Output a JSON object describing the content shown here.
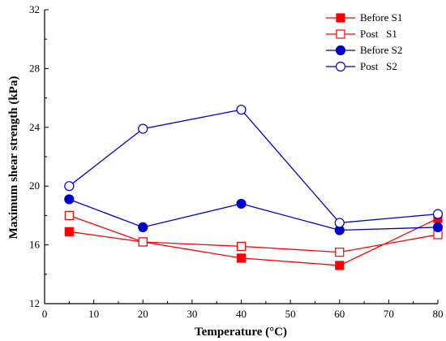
{
  "chart_data": {
    "type": "line",
    "title": "",
    "xlabel": "Temperature (°C)",
    "ylabel": "Maximum shear strength (kPa)",
    "xlim": [
      0,
      80
    ],
    "ylim": [
      12,
      32
    ],
    "x_ticks": [
      0,
      10,
      20,
      30,
      40,
      50,
      60,
      70,
      80
    ],
    "y_ticks": [
      12,
      16,
      20,
      24,
      28,
      32
    ],
    "grid": false,
    "legend_placement": "top-right",
    "x": [
      5,
      20,
      40,
      60,
      80
    ],
    "series": [
      {
        "name": "Before S1",
        "color": "#ff0000",
        "marker": "square",
        "filled": true,
        "values": [
          16.9,
          16.2,
          15.1,
          14.6,
          17.8
        ]
      },
      {
        "name": "Post   S1",
        "color": "#ff0000",
        "marker": "square",
        "filled": false,
        "values": [
          18.0,
          16.2,
          15.9,
          15.5,
          16.7
        ]
      },
      {
        "name": "Before S2",
        "color": "#0000cc",
        "marker": "circle",
        "filled": true,
        "values": [
          19.1,
          17.2,
          18.8,
          17.0,
          17.2
        ]
      },
      {
        "name": "Post   S2",
        "color": "#0000cc",
        "marker": "circle",
        "filled": false,
        "values": [
          20.0,
          23.9,
          25.2,
          17.5,
          18.1
        ]
      }
    ]
  }
}
